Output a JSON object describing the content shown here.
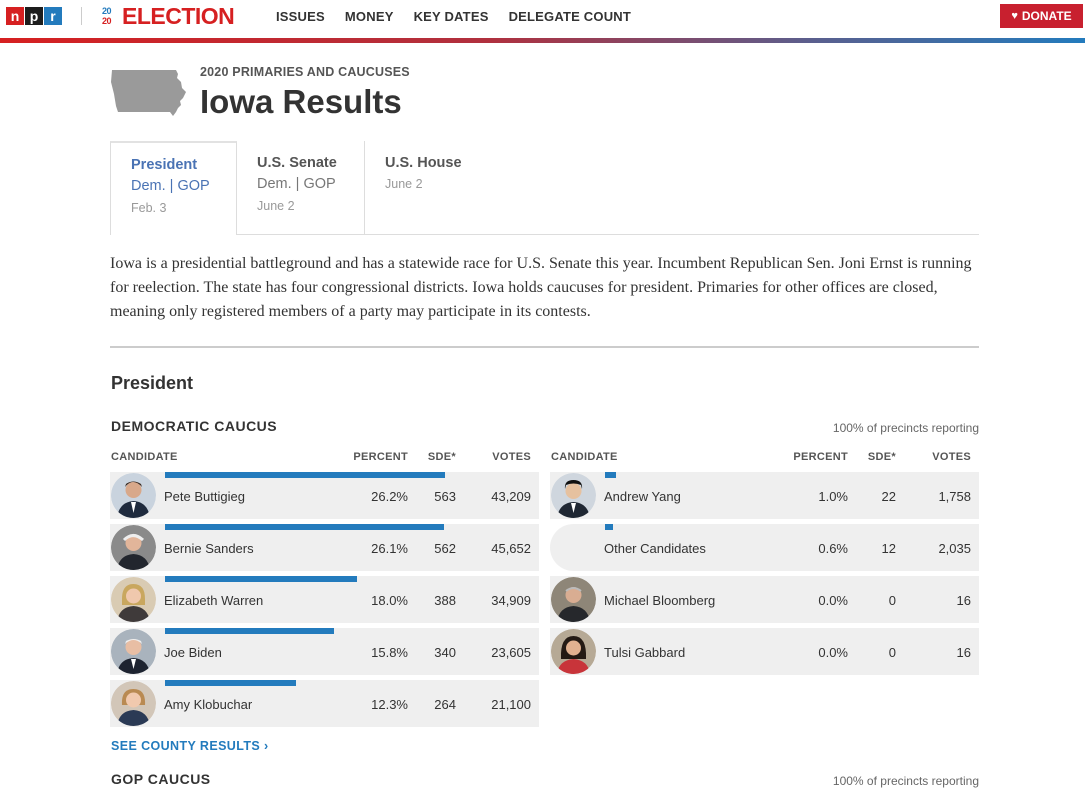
{
  "topnav": {
    "logo_letters": [
      "n",
      "p",
      "r"
    ],
    "election_year_top": "20",
    "election_year_bottom": "20",
    "election_word": "ELECTION",
    "links": [
      "ISSUES",
      "MONEY",
      "KEY DATES",
      "DELEGATE COUNT"
    ],
    "donate_label": "DONATE",
    "donate_icon": "heart-icon"
  },
  "header": {
    "kicker": "2020 PRIMARIES AND CAUCUSES",
    "title": "Iowa Results",
    "state_icon": "iowa-state-shape"
  },
  "tabs": [
    {
      "title": "President",
      "sub_a": "Dem.",
      "sub_sep": " | ",
      "sub_b": "GOP",
      "date": "Feb. 3"
    },
    {
      "title": "U.S. Senate",
      "sub_a": "Dem.",
      "sub_sep": " | ",
      "sub_b": "GOP",
      "date": "June 2"
    },
    {
      "title": "U.S. House",
      "date": "June 2"
    }
  ],
  "intro": "Iowa is a presidential battleground and has a statewide race for U.S. Senate this year. Incumbent Republican Sen. Joni Ernst is running for reelection. The state has four congressional districts. Iowa holds caucuses for president. Primaries for other offices are closed, meaning only registered members of a party may participate in its contests.",
  "president": {
    "section_title": "President",
    "dem": {
      "label": "DEMOCRATIC CAUCUS",
      "reporting": "100% of precincts reporting",
      "columns": {
        "candidate": "CANDIDATE",
        "percent": "PERCENT",
        "sde": "SDE*",
        "votes": "VOTES"
      },
      "left": [
        {
          "name": "Pete Buttigieg",
          "percent": "26.2%",
          "sde": "563",
          "votes": "43,209",
          "bar_pct": 26.2
        },
        {
          "name": "Bernie Sanders",
          "percent": "26.1%",
          "sde": "562",
          "votes": "45,652",
          "bar_pct": 26.1
        },
        {
          "name": "Elizabeth Warren",
          "percent": "18.0%",
          "sde": "388",
          "votes": "34,909",
          "bar_pct": 18.0
        },
        {
          "name": "Joe Biden",
          "percent": "15.8%",
          "sde": "340",
          "votes": "23,605",
          "bar_pct": 15.8
        },
        {
          "name": "Amy Klobuchar",
          "percent": "12.3%",
          "sde": "264",
          "votes": "21,100",
          "bar_pct": 12.3
        }
      ],
      "right": [
        {
          "name": "Andrew Yang",
          "percent": "1.0%",
          "sde": "22",
          "votes": "1,758",
          "bar_pct": 1.0
        },
        {
          "name": "Other Candidates",
          "percent": "0.6%",
          "sde": "12",
          "votes": "2,035",
          "bar_pct": 0.6
        },
        {
          "name": "Michael Bloomberg",
          "percent": "0.0%",
          "sde": "0",
          "votes": "16",
          "bar_pct": 0.0
        },
        {
          "name": "Tulsi Gabbard",
          "percent": "0.0%",
          "sde": "0",
          "votes": "16",
          "bar_pct": 0.0
        }
      ],
      "county_link": "SEE COUNTY RESULTS ›"
    },
    "gop": {
      "label": "GOP CAUCUS",
      "reporting": "100% of precincts reporting"
    }
  },
  "colors": {
    "npr_red": "#d62021",
    "npr_black": "#1d1d1d",
    "npr_blue": "#237bbd",
    "bar_blue": "#237bbd",
    "donate_red": "#c8202f",
    "tab_active_blue": "#4a73b4"
  }
}
